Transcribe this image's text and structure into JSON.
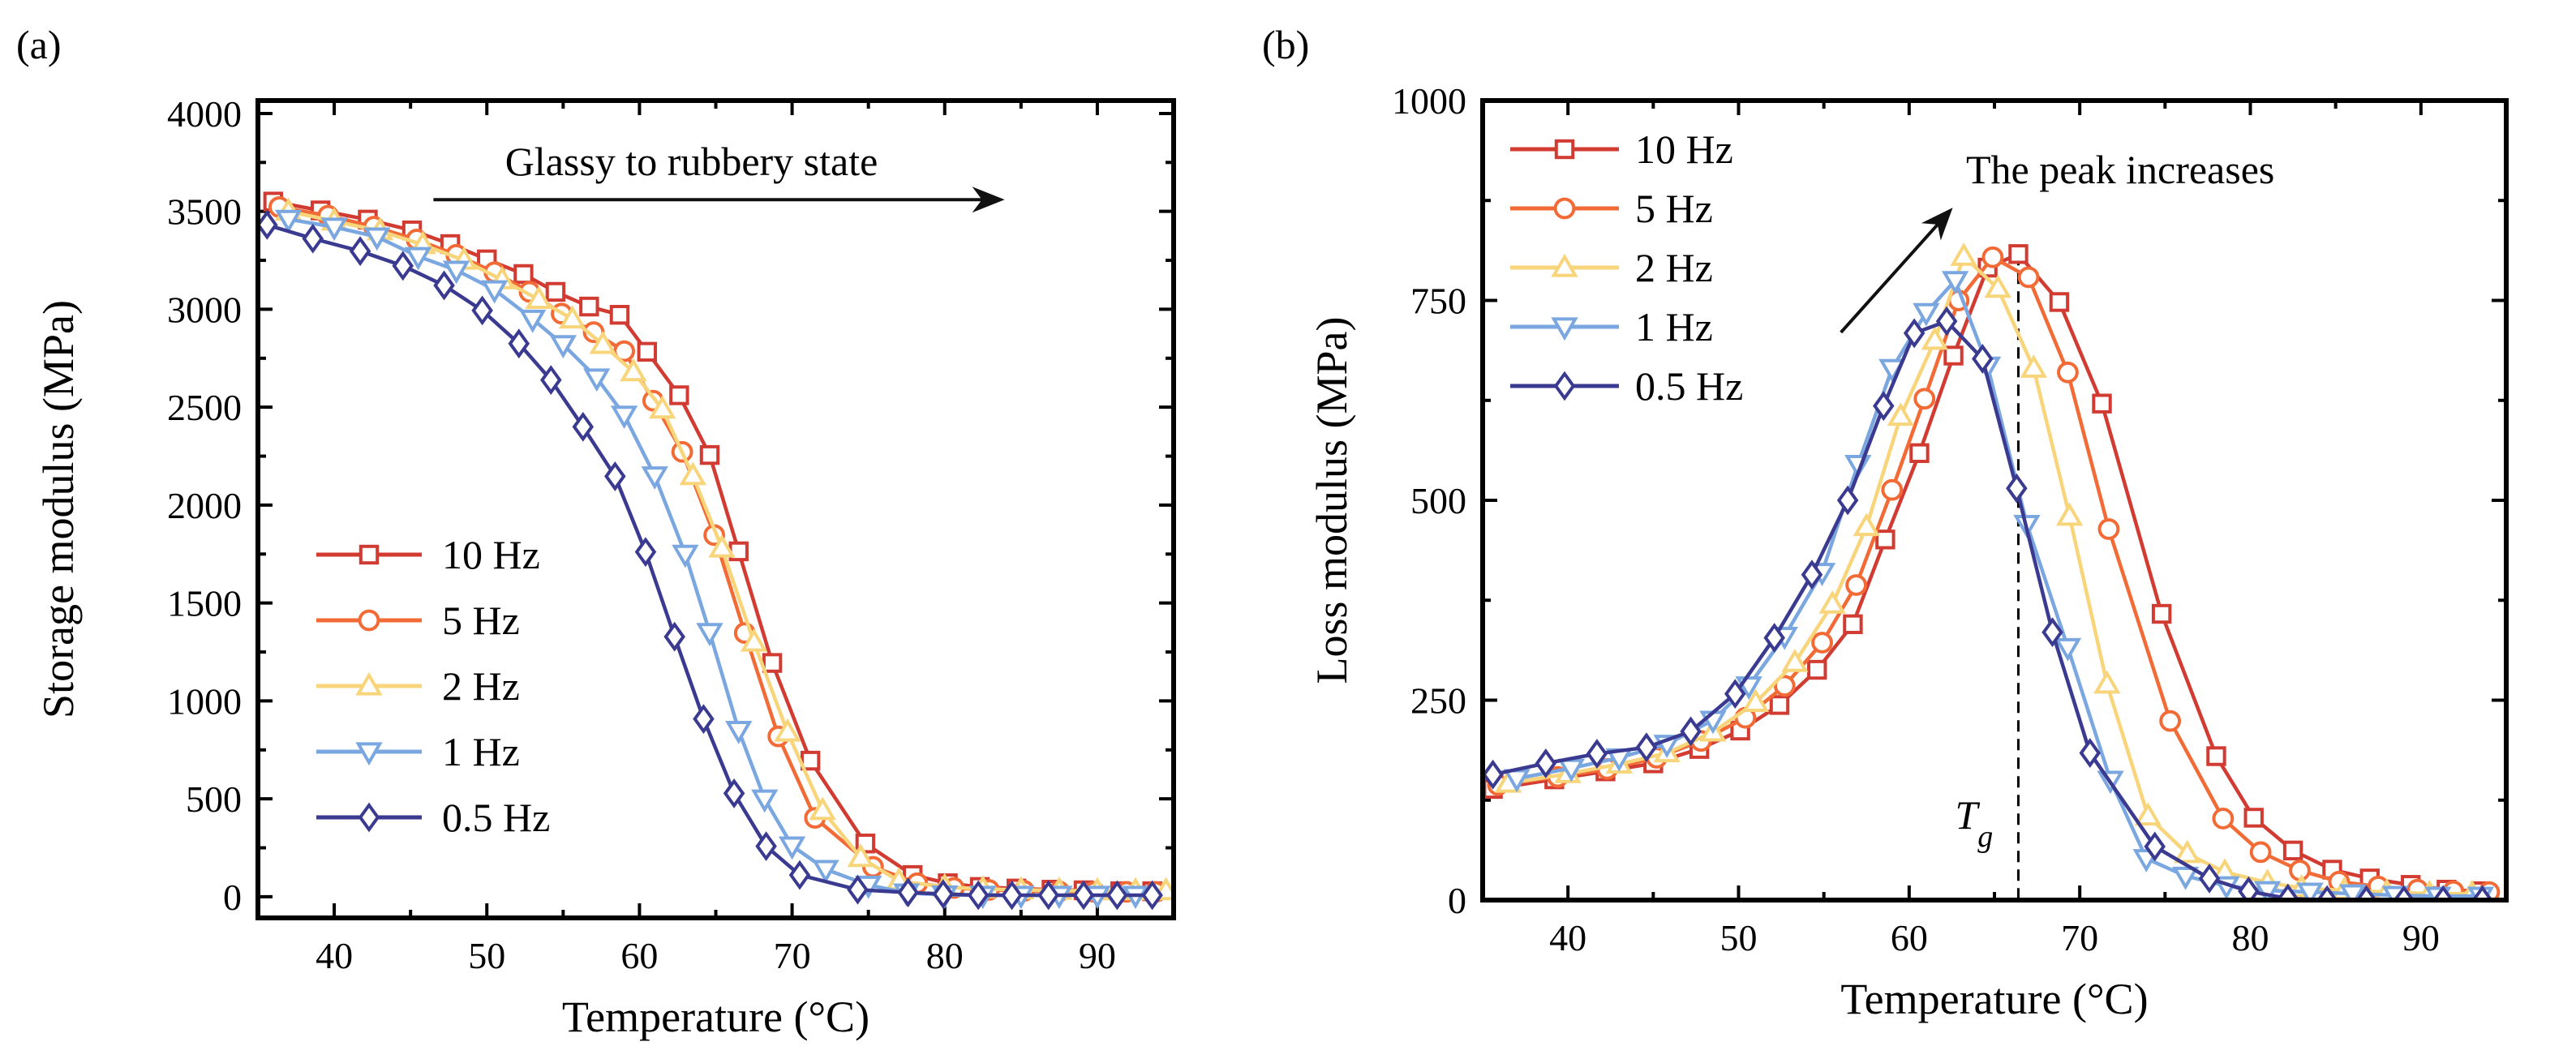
{
  "chart_data": [
    {
      "panel_label": "(a)",
      "type": "line",
      "xlabel": "Temperature (°C)",
      "ylabel": "Storage modulus (MPa)",
      "xlim": [
        35,
        95
      ],
      "ylim": [
        -108,
        4066
      ],
      "xticks": [
        40,
        50,
        60,
        70,
        80,
        90
      ],
      "yticks": [
        0,
        500,
        1000,
        1500,
        2000,
        2500,
        3000,
        3500,
        4000
      ],
      "legend_placement": "center-left",
      "annotation": {
        "text": "Glassy to rubbery state",
        "arrow_from": [
          46.5,
          3560
        ],
        "arrow_to": [
          83.5,
          3560
        ]
      },
      "series": [
        {
          "name": "10 Hz",
          "color": "#d13b32",
          "marker": "square",
          "x": [
            36.0,
            39.1,
            42.2,
            45.1,
            47.6,
            50.0,
            52.4,
            54.5,
            56.7,
            58.7,
            60.5,
            62.6,
            64.6,
            66.5,
            68.7,
            71.2,
            74.8,
            77.9,
            80.2,
            82.3,
            84.7,
            87.0,
            89.1,
            91.5,
            93.6
          ],
          "y": [
            3550,
            3505,
            3458,
            3403,
            3333,
            3255,
            3180,
            3089,
            3014,
            2972,
            2783,
            2561,
            2256,
            1764,
            1194,
            695,
            272,
            111,
            69,
            50,
            42,
            36,
            33,
            28,
            28
          ]
        },
        {
          "name": "5 Hz",
          "color": "#f26b36",
          "marker": "circle",
          "x": [
            36.4,
            39.6,
            42.6,
            45.4,
            48.0,
            50.5,
            52.8,
            54.9,
            57.0,
            59.0,
            60.9,
            62.8,
            64.9,
            66.9,
            69.1,
            71.5,
            75.3,
            78.2,
            80.6,
            82.9,
            85.2,
            87.5,
            89.8,
            91.9,
            93.8
          ],
          "y": [
            3522,
            3478,
            3422,
            3356,
            3278,
            3189,
            3089,
            2978,
            2883,
            2786,
            2533,
            2272,
            1847,
            1347,
            819,
            403,
            153,
            69,
            45,
            35,
            30,
            27,
            25,
            25,
            25
          ]
        },
        {
          "name": "2 Hz",
          "color": "#f8d57a",
          "marker": "triangle-up",
          "x": [
            37.0,
            40.0,
            43.0,
            45.8,
            48.5,
            51.0,
            53.4,
            55.6,
            57.6,
            59.6,
            61.5,
            63.5,
            65.4,
            67.5,
            69.7,
            72.0,
            74.5,
            77.0,
            80.0,
            82.5,
            85.0,
            87.5,
            90.0,
            92.5,
            94.5
          ],
          "y": [
            3500,
            3450,
            3400,
            3330,
            3250,
            3150,
            3050,
            2950,
            2820,
            2680,
            2490,
            2150,
            1780,
            1300,
            840,
            440,
            200,
            80,
            50,
            40,
            35,
            32,
            30,
            30,
            30
          ]
        },
        {
          "name": "1 Hz",
          "color": "#7ba7e1",
          "marker": "triangle-down",
          "x": [
            37.0,
            40.0,
            42.8,
            45.5,
            48.0,
            50.5,
            53.0,
            55.0,
            57.2,
            59.0,
            61.0,
            63.0,
            64.6,
            66.5,
            68.2,
            70.0,
            72.2,
            75.0,
            77.5,
            80.0,
            82.5,
            85.0,
            87.5,
            90.0,
            92.5
          ],
          "y": [
            3460,
            3420,
            3370,
            3270,
            3200,
            3100,
            2950,
            2820,
            2650,
            2460,
            2150,
            1750,
            1350,
            850,
            500,
            260,
            140,
            60,
            20,
            10,
            8,
            8,
            8,
            8,
            8
          ]
        },
        {
          "name": "0.5 Hz",
          "color": "#3b3a91",
          "marker": "diamond",
          "x": [
            35.6,
            38.6,
            41.7,
            44.5,
            47.2,
            49.7,
            52.1,
            54.2,
            56.3,
            58.4,
            60.4,
            62.3,
            64.2,
            66.2,
            68.3,
            70.5,
            74.3,
            77.6,
            79.9,
            82.2,
            84.4,
            86.8,
            89.1,
            91.3,
            93.6
          ],
          "y": [
            3431,
            3361,
            3297,
            3222,
            3122,
            2994,
            2825,
            2639,
            2400,
            2147,
            1761,
            1328,
            908,
            528,
            258,
            111,
            36,
            22,
            14,
            8,
            8,
            8,
            8,
            8,
            8
          ]
        }
      ]
    },
    {
      "panel_label": "(b)",
      "type": "line",
      "xlabel": "Temperature (°C)",
      "ylabel": "Loss modulus (MPa)",
      "xlim": [
        35,
        95
      ],
      "ylim": [
        0,
        1000
      ],
      "xticks": [
        40,
        50,
        60,
        70,
        80,
        90
      ],
      "yticks": [
        0,
        250,
        500,
        750,
        1000
      ],
      "legend_placement": "top-left",
      "annotation": {
        "text": "The peak increases",
        "arrow_from": [
          56.0,
          710
        ],
        "arrow_to": [
          62.3,
          860
        ]
      },
      "tg_marker": {
        "label": "T",
        "subscript": "g",
        "x": 66.4
      },
      "series": [
        {
          "name": "10 Hz",
          "color": "#d13b32",
          "marker": "square",
          "x": [
            35.6,
            39.2,
            42.2,
            45.0,
            47.7,
            50.1,
            52.4,
            54.6,
            56.7,
            58.6,
            60.6,
            62.6,
            64.6,
            66.4,
            68.8,
            71.3,
            74.8,
            78.0,
            80.2,
            82.5,
            84.8,
            87.0,
            89.4,
            91.5,
            93.5
          ],
          "y": [
            139,
            151,
            161,
            171,
            189,
            212,
            244,
            288,
            345,
            451,
            559,
            681,
            791,
            808,
            748,
            621,
            358,
            180,
            103,
            62,
            38,
            27,
            19,
            13,
            11
          ]
        },
        {
          "name": "5 Hz",
          "color": "#f26b36",
          "marker": "circle",
          "x": [
            35.9,
            39.4,
            42.3,
            45.2,
            47.8,
            50.4,
            52.7,
            54.9,
            56.9,
            59.0,
            60.9,
            62.9,
            64.9,
            67.0,
            69.3,
            71.7,
            75.3,
            78.4,
            80.6,
            82.9,
            85.2,
            87.5,
            89.8,
            91.9,
            94.0
          ],
          "y": [
            144,
            154,
            164,
            178,
            199,
            228,
            268,
            322,
            394,
            513,
            627,
            750,
            804,
            779,
            660,
            464,
            224,
            102,
            60,
            37,
            23,
            17,
            13,
            11,
            10
          ]
        },
        {
          "name": "2 Hz",
          "color": "#f8d57a",
          "marker": "triangle-up",
          "x": [
            36.5,
            40.0,
            43.0,
            45.8,
            48.5,
            51.0,
            53.3,
            55.5,
            57.5,
            59.5,
            61.5,
            63.2,
            65.2,
            67.3,
            69.4,
            71.6,
            74.0,
            76.3,
            78.5,
            81.0,
            83.0,
            85.5,
            88.0,
            90.5,
            93.0
          ],
          "y": [
            146,
            158,
            170,
            184,
            210,
            247,
            297,
            370,
            467,
            605,
            700,
            805,
            765,
            665,
            480,
            270,
            105,
            58,
            35,
            22,
            15,
            12,
            10,
            8,
            8
          ]
        },
        {
          "name": "1 Hz",
          "color": "#7ba7e1",
          "marker": "triangle-down",
          "x": [
            37.0,
            40.2,
            43.0,
            45.8,
            48.5,
            50.6,
            52.7,
            54.9,
            57.0,
            59.0,
            61.0,
            62.7,
            64.6,
            66.9,
            69.3,
            71.8,
            73.9,
            76.2,
            78.6,
            81.0,
            83.5,
            86.0,
            88.5,
            91.0,
            93.5
          ],
          "y": [
            152,
            165,
            178,
            195,
            225,
            268,
            330,
            410,
            545,
            665,
            735,
            775,
            668,
            470,
            316,
            150,
            52,
            30,
            18,
            12,
            10,
            8,
            6,
            5,
            5
          ]
        },
        {
          "name": "0.5 Hz",
          "color": "#3b3a91",
          "marker": "diamond",
          "x": [
            35.6,
            38.7,
            41.7,
            44.6,
            47.2,
            49.8,
            52.1,
            54.3,
            56.4,
            58.5,
            60.3,
            62.2,
            64.3,
            66.3,
            68.4,
            70.6,
            74.4,
            77.6,
            79.9,
            82.2,
            84.5,
            86.8,
            89.0,
            91.3,
            93.6
          ],
          "y": [
            157,
            171,
            183,
            191,
            211,
            258,
            328,
            407,
            500,
            618,
            709,
            724,
            677,
            515,
            335,
            184,
            67,
            27,
            11,
            2,
            0,
            0,
            0,
            0,
            0
          ]
        }
      ]
    }
  ]
}
